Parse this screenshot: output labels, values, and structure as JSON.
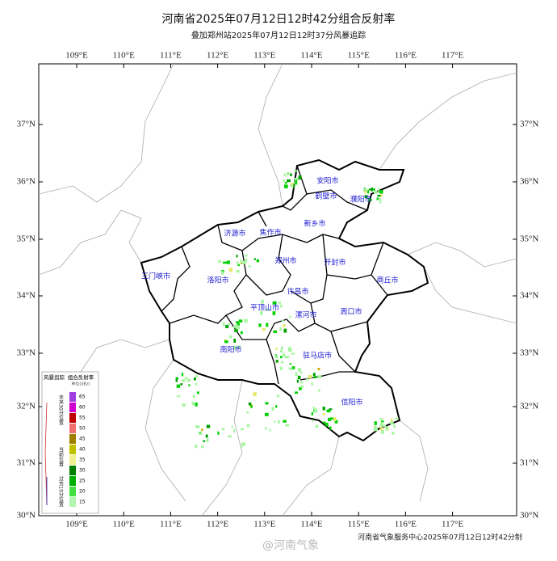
{
  "header": {
    "title": "河南省2025年07月12日12时42分组合反射率",
    "subtitle": "叠加郑州站2025年07月12日12时37分风暴追踪"
  },
  "lon_labels": [
    "109°E",
    "110°E",
    "111°E",
    "112°E",
    "113°E",
    "114°E",
    "115°E",
    "116°E",
    "117°E"
  ],
  "lat_labels": [
    "37°N",
    "36°N",
    "35°N",
    "34°N",
    "33°N",
    "32°N",
    "31°N",
    "30°N"
  ],
  "cities": [
    "安阳市",
    "鹤壁市",
    "濮阳市",
    "新乡市",
    "济源市",
    "焦作市",
    "郑州市",
    "开封市",
    "三门峡市",
    "洛阳市",
    "商丘市",
    "许昌市",
    "平顶山市",
    "漯河市",
    "周口市",
    "南阳市",
    "驻马店市",
    "信阳市"
  ],
  "legend": {
    "track_title": "风暴追踪",
    "refl_title": "组合反射率",
    "unit": "单位(dBz)",
    "track_labels": [
      "未来30分位置",
      "当前位置",
      "过去15分位置"
    ],
    "levels": [
      65,
      60,
      55,
      50,
      45,
      40,
      35,
      30,
      25,
      20,
      15
    ]
  },
  "footer": "河南省气象服务中心2025年07月12日12时42分制",
  "watermark": "@河南气象"
}
